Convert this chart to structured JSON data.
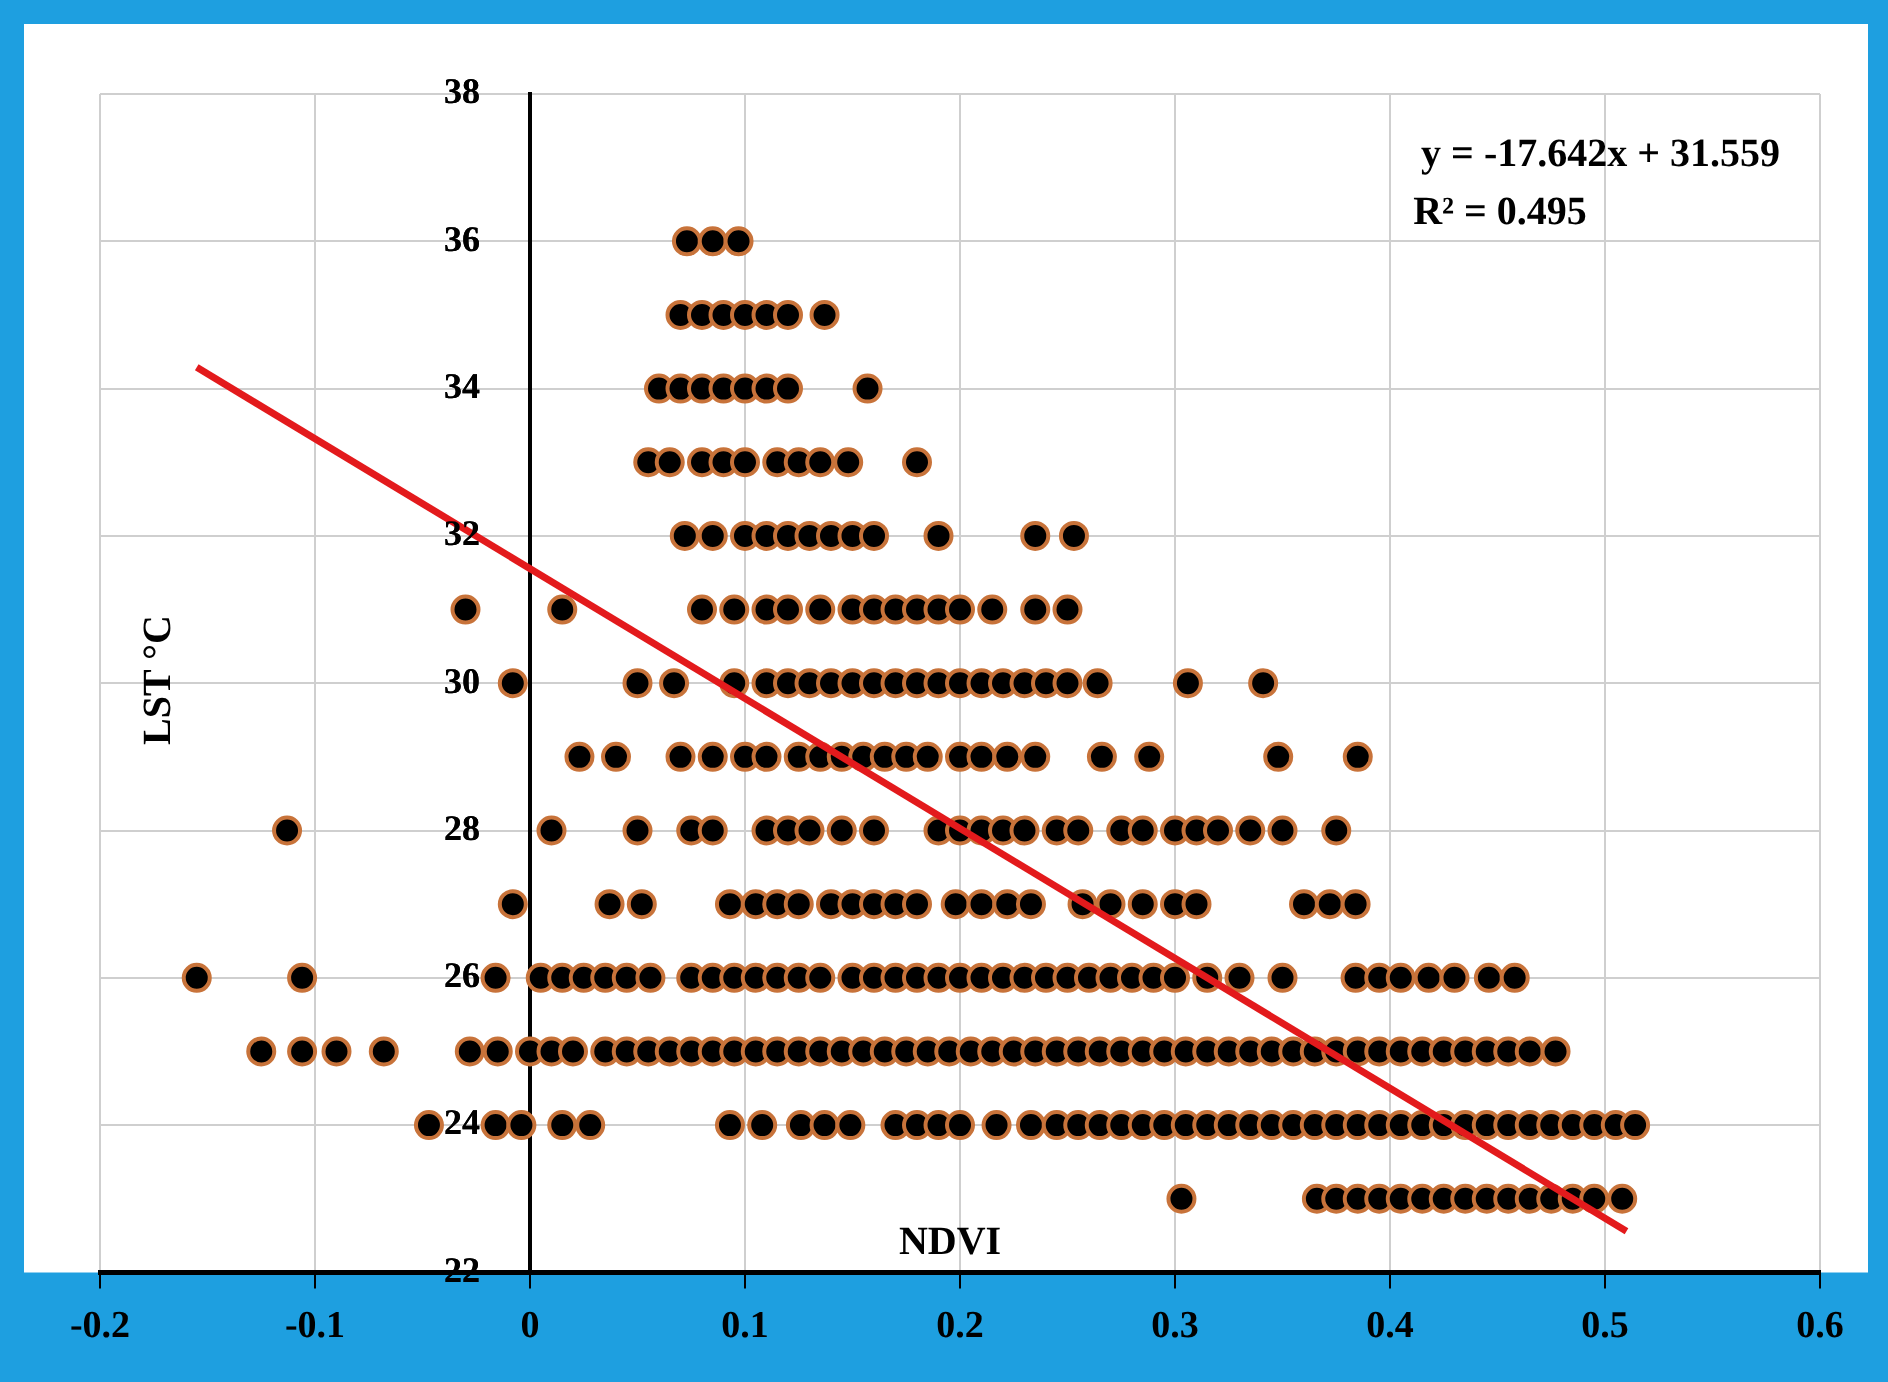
{
  "chart_data": {
    "type": "scatter",
    "xlabel": "NDVI",
    "ylabel": "LST °C",
    "marker": "circle",
    "grid": true,
    "legend": false,
    "xlim": [
      -0.2,
      0.6
    ],
    "xticks": [
      -0.2,
      -0.1,
      0,
      0.1,
      0.2,
      0.3,
      0.4,
      0.5,
      0.6
    ],
    "ylim": [
      22,
      38
    ],
    "yticks": [
      22,
      24,
      26,
      28,
      30,
      32,
      34,
      36,
      38
    ],
    "annotations": [
      "y = -17.642x + 31.559",
      "R² = 0.495"
    ],
    "series": [
      {
        "color": "#000000",
        "x": [
          0.073,
          0.085,
          0.097
        ],
        "values": [
          36,
          36,
          36
        ]
      },
      {
        "color": "#000000",
        "x": [
          0.07,
          0.08,
          0.09,
          0.1,
          0.11,
          0.12,
          0.137
        ],
        "values": [
          35,
          35,
          35,
          35,
          35,
          35,
          35
        ]
      },
      {
        "color": "#000000",
        "x": [
          0.06,
          0.07,
          0.08,
          0.09,
          0.1,
          0.11,
          0.12,
          0.157
        ],
        "values": [
          34,
          34,
          34,
          34,
          34,
          34,
          34,
          34
        ]
      },
      {
        "color": "#000000",
        "x": [
          0.055,
          0.065,
          0.08,
          0.09,
          0.1,
          0.115,
          0.125,
          0.135,
          0.148,
          0.18
        ],
        "values": [
          33,
          33,
          33,
          33,
          33,
          33,
          33,
          33,
          33,
          33
        ]
      },
      {
        "color": "#000000",
        "x": [
          0.072,
          0.085,
          0.1,
          0.11,
          0.12,
          0.13,
          0.14,
          0.15,
          0.16,
          0.19,
          0.235,
          0.253
        ],
        "values": [
          32,
          32,
          32,
          32,
          32,
          32,
          32,
          32,
          32,
          32,
          32,
          32
        ]
      },
      {
        "color": "#000000",
        "x": [
          -0.03,
          0.015,
          0.08,
          0.095,
          0.11,
          0.12,
          0.135,
          0.15,
          0.16,
          0.17,
          0.18,
          0.19,
          0.2,
          0.215,
          0.235,
          0.25
        ],
        "values": [
          31,
          31,
          31,
          31,
          31,
          31,
          31,
          31,
          31,
          31,
          31,
          31,
          31,
          31,
          31,
          31
        ]
      },
      {
        "color": "#000000",
        "x": [
          -0.008,
          0.05,
          0.067,
          0.095,
          0.11,
          0.12,
          0.13,
          0.14,
          0.15,
          0.16,
          0.17,
          0.18,
          0.19,
          0.2,
          0.21,
          0.22,
          0.23,
          0.24,
          0.25,
          0.264,
          0.306,
          0.341
        ],
        "values": [
          30,
          30,
          30,
          30,
          30,
          30,
          30,
          30,
          30,
          30,
          30,
          30,
          30,
          30,
          30,
          30,
          30,
          30,
          30,
          30,
          30,
          30
        ]
      },
      {
        "color": "#000000",
        "x": [
          0.023,
          0.04,
          0.07,
          0.085,
          0.1,
          0.11,
          0.125,
          0.135,
          0.145,
          0.155,
          0.165,
          0.175,
          0.185,
          0.2,
          0.21,
          0.222,
          0.235,
          0.266,
          0.288,
          0.348,
          0.385
        ],
        "values": [
          29,
          29,
          29,
          29,
          29,
          29,
          29,
          29,
          29,
          29,
          29,
          29,
          29,
          29,
          29,
          29,
          29,
          29,
          29,
          29,
          29
        ]
      },
      {
        "color": "#000000",
        "x": [
          -0.113,
          0.01,
          0.05,
          0.075,
          0.085,
          0.11,
          0.12,
          0.13,
          0.145,
          0.16,
          0.19,
          0.2,
          0.21,
          0.22,
          0.23,
          0.245,
          0.255,
          0.275,
          0.285,
          0.3,
          0.31,
          0.32,
          0.335,
          0.35,
          0.375
        ],
        "values": [
          28,
          28,
          28,
          28,
          28,
          28,
          28,
          28,
          28,
          28,
          28,
          28,
          28,
          28,
          28,
          28,
          28,
          28,
          28,
          28,
          28,
          28,
          28,
          28,
          28
        ]
      },
      {
        "color": "#000000",
        "x": [
          -0.008,
          0.037,
          0.052,
          0.093,
          0.105,
          0.115,
          0.125,
          0.14,
          0.15,
          0.16,
          0.17,
          0.18,
          0.198,
          0.21,
          0.222,
          0.233,
          0.257,
          0.27,
          0.285,
          0.3,
          0.31,
          0.36,
          0.372,
          0.384
        ],
        "values": [
          27,
          27,
          27,
          27,
          27,
          27,
          27,
          27,
          27,
          27,
          27,
          27,
          27,
          27,
          27,
          27,
          27,
          27,
          27,
          27,
          27,
          27,
          27,
          27
        ]
      },
      {
        "color": "#000000",
        "x": [
          -0.155,
          -0.106,
          -0.016,
          0.005,
          0.015,
          0.025,
          0.035,
          0.045,
          0.056,
          0.075,
          0.085,
          0.095,
          0.105,
          0.115,
          0.125,
          0.135,
          0.15,
          0.16,
          0.17,
          0.18,
          0.19,
          0.2,
          0.21,
          0.22,
          0.23,
          0.24,
          0.25,
          0.26,
          0.27,
          0.28,
          0.29,
          0.3,
          0.315,
          0.33,
          0.35,
          0.384,
          0.395,
          0.405,
          0.418,
          0.43,
          0.446,
          0.458
        ],
        "values": [
          26,
          26,
          26,
          26,
          26,
          26,
          26,
          26,
          26,
          26,
          26,
          26,
          26,
          26,
          26,
          26,
          26,
          26,
          26,
          26,
          26,
          26,
          26,
          26,
          26,
          26,
          26,
          26,
          26,
          26,
          26,
          26,
          26,
          26,
          26,
          26,
          26,
          26,
          26,
          26,
          26,
          26
        ]
      },
      {
        "color": "#000000",
        "x": [
          -0.125,
          -0.106,
          -0.09,
          -0.068,
          -0.028,
          -0.015,
          0,
          0.01,
          0.02,
          0.035,
          0.045,
          0.055,
          0.065,
          0.075,
          0.085,
          0.095,
          0.105,
          0.115,
          0.125,
          0.135,
          0.145,
          0.155,
          0.165,
          0.175,
          0.185,
          0.195,
          0.205,
          0.215,
          0.225,
          0.235,
          0.245,
          0.255,
          0.265,
          0.275,
          0.285,
          0.295,
          0.305,
          0.315,
          0.325,
          0.335,
          0.345,
          0.355,
          0.365,
          0.375,
          0.385,
          0.395,
          0.405,
          0.415,
          0.425,
          0.435,
          0.445,
          0.455,
          0.465,
          0.477
        ],
        "values": [
          25,
          25,
          25,
          25,
          25,
          25,
          25,
          25,
          25,
          25,
          25,
          25,
          25,
          25,
          25,
          25,
          25,
          25,
          25,
          25,
          25,
          25,
          25,
          25,
          25,
          25,
          25,
          25,
          25,
          25,
          25,
          25,
          25,
          25,
          25,
          25,
          25,
          25,
          25,
          25,
          25,
          25,
          25,
          25,
          25,
          25,
          25,
          25,
          25,
          25,
          25,
          25,
          25,
          25
        ]
      },
      {
        "color": "#000000",
        "x": [
          -0.047,
          -0.016,
          -0.004,
          0.015,
          0.028,
          0.093,
          0.108,
          0.126,
          0.137,
          0.149,
          0.17,
          0.18,
          0.19,
          0.2,
          0.217,
          0.233,
          0.245,
          0.255,
          0.265,
          0.275,
          0.285,
          0.295,
          0.305,
          0.315,
          0.325,
          0.335,
          0.345,
          0.355,
          0.365,
          0.375,
          0.385,
          0.395,
          0.405,
          0.415,
          0.425,
          0.435,
          0.445,
          0.455,
          0.465,
          0.475,
          0.485,
          0.495,
          0.505,
          0.514
        ],
        "values": [
          24,
          24,
          24,
          24,
          24,
          24,
          24,
          24,
          24,
          24,
          24,
          24,
          24,
          24,
          24,
          24,
          24,
          24,
          24,
          24,
          24,
          24,
          24,
          24,
          24,
          24,
          24,
          24,
          24,
          24,
          24,
          24,
          24,
          24,
          24,
          24,
          24,
          24,
          24,
          24,
          24,
          24,
          24,
          24
        ]
      },
      {
        "color": "#000000",
        "x": [
          0.303,
          0.366,
          0.375,
          0.385,
          0.395,
          0.405,
          0.415,
          0.425,
          0.435,
          0.445,
          0.455,
          0.465,
          0.475,
          0.485,
          0.495,
          0.508
        ],
        "values": [
          23,
          23,
          23,
          23,
          23,
          23,
          23,
          23,
          23,
          23,
          23,
          23,
          23,
          23,
          23,
          23
        ]
      },
      {
        "type": "line",
        "color": "#e31a1c",
        "marker": "none",
        "x": [
          -0.155,
          0.51
        ],
        "values": [
          34.29,
          22.56
        ]
      }
    ]
  }
}
